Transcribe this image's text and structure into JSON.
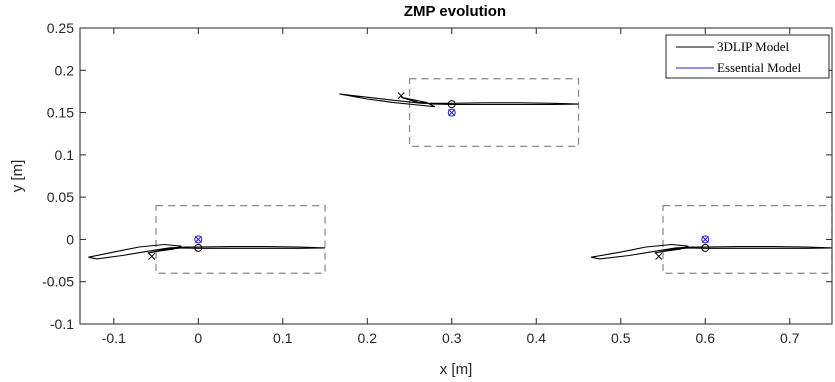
{
  "chart_data": {
    "type": "line",
    "title": "ZMP evolution",
    "xlabel": "x [m]",
    "ylabel": "y [m]",
    "xlim": [
      -0.14,
      0.75
    ],
    "ylim": [
      -0.1,
      0.25
    ],
    "xticks": [
      -0.1,
      0,
      0.1,
      0.2,
      0.3,
      0.4,
      0.5,
      0.6,
      0.7
    ],
    "xtick_labels": [
      "-0.1",
      "0",
      "0.1",
      "0.2",
      "0.3",
      "0.4",
      "0.5",
      "0.6",
      "0.7"
    ],
    "yticks": [
      -0.1,
      -0.05,
      0,
      0.05,
      0.1,
      0.15,
      0.2,
      0.25
    ],
    "ytick_labels": [
      "-0.1",
      "-0.05",
      "0",
      "0.05",
      "0.1",
      "0.15",
      "0.2",
      "0.25"
    ],
    "grid": false,
    "legend_position": "top-right",
    "series": [
      {
        "name": "3DLIP Model",
        "color": "#000000",
        "segments": [
          [
            [
              0.0,
              -0.009
            ],
            [
              0.04,
              -0.0085
            ],
            [
              0.08,
              -0.0085
            ],
            [
              0.12,
              -0.009
            ],
            [
              0.15,
              -0.01
            ],
            [
              0.12,
              -0.0105
            ],
            [
              0.08,
              -0.0105
            ],
            [
              0.04,
              -0.0105
            ],
            [
              0.0,
              -0.0105
            ],
            [
              -0.02,
              -0.01
            ],
            [
              -0.04,
              -0.012
            ],
            [
              -0.06,
              -0.016
            ],
            [
              -0.045,
              -0.0135
            ],
            [
              -0.03,
              -0.0115
            ],
            [
              -0.02,
              -0.008
            ],
            [
              -0.04,
              -0.006
            ],
            [
              -0.07,
              -0.009
            ],
            [
              -0.1,
              -0.015
            ],
            [
              -0.13,
              -0.021
            ],
            [
              -0.12,
              -0.023
            ],
            [
              -0.09,
              -0.019
            ],
            [
              -0.06,
              -0.014
            ],
            [
              -0.035,
              -0.01
            ],
            [
              -0.015,
              -0.009
            ],
            [
              0.0,
              -0.009
            ]
          ],
          [
            [
              0.3,
              0.161
            ],
            [
              0.34,
              0.1615
            ],
            [
              0.38,
              0.1615
            ],
            [
              0.42,
              0.161
            ],
            [
              0.45,
              0.16
            ],
            [
              0.42,
              0.1595
            ],
            [
              0.38,
              0.1595
            ],
            [
              0.34,
              0.1595
            ],
            [
              0.3,
              0.1595
            ],
            [
              0.28,
              0.16
            ],
            [
              0.26,
              0.162
            ],
            [
              0.24,
              0.168
            ],
            [
              0.255,
              0.165
            ],
            [
              0.27,
              0.162
            ],
            [
              0.28,
              0.157
            ],
            [
              0.26,
              0.159
            ],
            [
              0.23,
              0.162
            ],
            [
              0.2,
              0.166
            ],
            [
              0.167,
              0.172
            ],
            [
              0.175,
              0.171
            ],
            [
              0.21,
              0.167
            ],
            [
              0.245,
              0.163
            ],
            [
              0.265,
              0.161
            ],
            [
              0.285,
              0.161
            ],
            [
              0.3,
              0.161
            ]
          ],
          [
            [
              0.6,
              -0.009
            ],
            [
              0.64,
              -0.0085
            ],
            [
              0.68,
              -0.0085
            ],
            [
              0.72,
              -0.009
            ],
            [
              0.75,
              -0.01
            ],
            [
              0.72,
              -0.0105
            ],
            [
              0.68,
              -0.0105
            ],
            [
              0.64,
              -0.0105
            ],
            [
              0.6,
              -0.0105
            ],
            [
              0.58,
              -0.01
            ],
            [
              0.56,
              -0.012
            ],
            [
              0.54,
              -0.016
            ],
            [
              0.555,
              -0.0135
            ],
            [
              0.57,
              -0.0115
            ],
            [
              0.58,
              -0.008
            ],
            [
              0.56,
              -0.006
            ],
            [
              0.53,
              -0.009
            ],
            [
              0.5,
              -0.015
            ],
            [
              0.465,
              -0.021
            ],
            [
              0.475,
              -0.023
            ],
            [
              0.51,
              -0.019
            ],
            [
              0.54,
              -0.014
            ],
            [
              0.565,
              -0.01
            ],
            [
              0.585,
              -0.009
            ],
            [
              0.6,
              -0.009
            ]
          ]
        ],
        "circle_markers": [
          [
            0.0,
            -0.01
          ],
          [
            0.3,
            0.16
          ],
          [
            0.6,
            -0.01
          ]
        ],
        "cross_markers": [
          [
            -0.055,
            -0.02
          ],
          [
            0.24,
            0.17
          ],
          [
            0.545,
            -0.02
          ]
        ]
      },
      {
        "name": "Essential Model",
        "color": "#2222cc",
        "circle_markers": [
          [
            0.0,
            0.0
          ],
          [
            0.3,
            0.15
          ],
          [
            0.6,
            0.0
          ]
        ],
        "cross_markers": [
          [
            0.0,
            0.0
          ],
          [
            0.3,
            0.15
          ],
          [
            0.6,
            0.0
          ]
        ]
      }
    ],
    "support_rectangles": [
      {
        "x": [
          -0.05,
          0.15
        ],
        "y": [
          -0.04,
          0.04
        ]
      },
      {
        "x": [
          0.25,
          0.45
        ],
        "y": [
          0.11,
          0.19
        ]
      },
      {
        "x": [
          0.55,
          0.75
        ],
        "y": [
          -0.04,
          0.04
        ]
      }
    ],
    "rectangle_color": "#888888"
  }
}
